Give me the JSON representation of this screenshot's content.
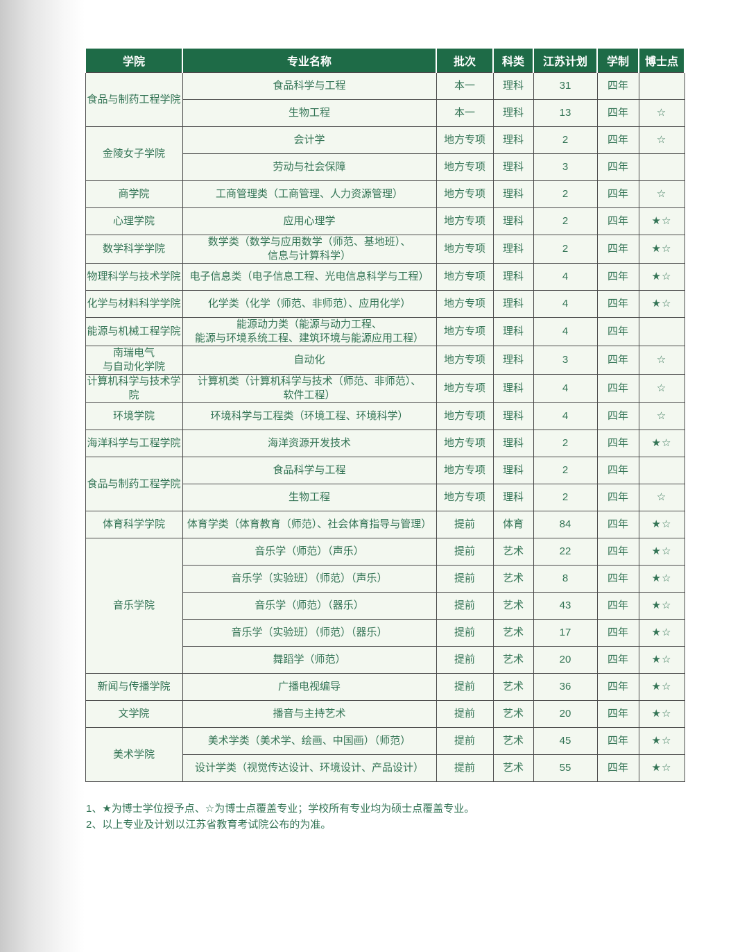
{
  "colors": {
    "header_bg": "#1e6b47",
    "header_text": "#ffffff",
    "cell_bg": "#f3f8f0",
    "cell_text": "#337455",
    "border": "#4a4a4a"
  },
  "table": {
    "headers": [
      "学院",
      "专业名称",
      "批次",
      "科类",
      "江苏计划",
      "学制",
      "博士点"
    ],
    "legend": {
      "filled_star": "★",
      "outline_star": "☆"
    },
    "rows": [
      {
        "college": "食品与制药工程学院",
        "college_rowspan": 2,
        "major": "食品科学与工程",
        "batch": "本一",
        "category": "理科",
        "plan": "31",
        "duration": "四年",
        "doctoral": ""
      },
      {
        "major": "生物工程",
        "batch": "本一",
        "category": "理科",
        "plan": "13",
        "duration": "四年",
        "doctoral": "☆"
      },
      {
        "college": "金陵女子学院",
        "college_rowspan": 2,
        "major": "会计学",
        "batch": "地方专项",
        "category": "理科",
        "plan": "2",
        "duration": "四年",
        "doctoral": "☆"
      },
      {
        "major": "劳动与社会保障",
        "batch": "地方专项",
        "category": "理科",
        "plan": "3",
        "duration": "四年",
        "doctoral": ""
      },
      {
        "college": "商学院",
        "major": "工商管理类（工商管理、人力资源管理）",
        "batch": "地方专项",
        "category": "理科",
        "plan": "2",
        "duration": "四年",
        "doctoral": "☆"
      },
      {
        "college": "心理学院",
        "major": "应用心理学",
        "batch": "地方专项",
        "category": "理科",
        "plan": "2",
        "duration": "四年",
        "doctoral": "★☆"
      },
      {
        "college": "数学科学学院",
        "major": "数学类（数学与应用数学（师范、基地班）、\n信息与计算科学）",
        "batch": "地方专项",
        "category": "理科",
        "plan": "2",
        "duration": "四年",
        "doctoral": "★☆"
      },
      {
        "college": "物理科学与技术学院",
        "major": "电子信息类（电子信息工程、光电信息科学与工程）",
        "batch": "地方专项",
        "category": "理科",
        "plan": "4",
        "duration": "四年",
        "doctoral": "★☆"
      },
      {
        "college": "化学与材料科学学院",
        "major": "化学类（化学（师范、非师范）、应用化学）",
        "batch": "地方专项",
        "category": "理科",
        "plan": "4",
        "duration": "四年",
        "doctoral": "★☆"
      },
      {
        "college": "能源与机械工程学院",
        "major": "能源动力类（能源与动力工程、\n能源与环境系统工程、建筑环境与能源应用工程）",
        "batch": "地方专项",
        "category": "理科",
        "plan": "4",
        "duration": "四年",
        "doctoral": ""
      },
      {
        "college": "南瑞电气\n与自动化学院",
        "major": "自动化",
        "batch": "地方专项",
        "category": "理科",
        "plan": "3",
        "duration": "四年",
        "doctoral": "☆"
      },
      {
        "college": "计算机科学与技术学院",
        "major": "计算机类（计算机科学与技术（师范、非师范）、\n软件工程）",
        "batch": "地方专项",
        "category": "理科",
        "plan": "4",
        "duration": "四年",
        "doctoral": "☆"
      },
      {
        "college": "环境学院",
        "major": "环境科学与工程类（环境工程、环境科学）",
        "batch": "地方专项",
        "category": "理科",
        "plan": "4",
        "duration": "四年",
        "doctoral": "☆"
      },
      {
        "college": "海洋科学与工程学院",
        "major": "海洋资源开发技术",
        "batch": "地方专项",
        "category": "理科",
        "plan": "2",
        "duration": "四年",
        "doctoral": "★☆"
      },
      {
        "college": "食品与制药工程学院",
        "college_rowspan": 2,
        "major": "食品科学与工程",
        "batch": "地方专项",
        "category": "理科",
        "plan": "2",
        "duration": "四年",
        "doctoral": ""
      },
      {
        "major": "生物工程",
        "batch": "地方专项",
        "category": "理科",
        "plan": "2",
        "duration": "四年",
        "doctoral": "☆"
      },
      {
        "college": "体育科学学院",
        "major": "体育学类（体育教育（师范）、社会体育指导与管理）",
        "batch": "提前",
        "category": "体育",
        "plan": "84",
        "duration": "四年",
        "doctoral": "★☆"
      },
      {
        "college": "音乐学院",
        "college_rowspan": 5,
        "major": "音乐学（师范）（声乐）",
        "batch": "提前",
        "category": "艺术",
        "plan": "22",
        "duration": "四年",
        "doctoral": "★☆"
      },
      {
        "major": "音乐学（实验班）（师范）（声乐）",
        "batch": "提前",
        "category": "艺术",
        "plan": "8",
        "duration": "四年",
        "doctoral": "★☆"
      },
      {
        "major": "音乐学（师范）（器乐）",
        "batch": "提前",
        "category": "艺术",
        "plan": "43",
        "duration": "四年",
        "doctoral": "★☆"
      },
      {
        "major": "音乐学（实验班）（师范）（器乐）",
        "batch": "提前",
        "category": "艺术",
        "plan": "17",
        "duration": "四年",
        "doctoral": "★☆"
      },
      {
        "major": "舞蹈学（师范）",
        "batch": "提前",
        "category": "艺术",
        "plan": "20",
        "duration": "四年",
        "doctoral": "★☆"
      },
      {
        "college": "新闻与传播学院",
        "major": "广播电视编导",
        "batch": "提前",
        "category": "艺术",
        "plan": "36",
        "duration": "四年",
        "doctoral": "★☆"
      },
      {
        "college": "文学院",
        "major": "播音与主持艺术",
        "batch": "提前",
        "category": "艺术",
        "plan": "20",
        "duration": "四年",
        "doctoral": "★☆"
      },
      {
        "college": "美术学院",
        "college_rowspan": 2,
        "major": "美术学类（美术学、绘画、中国画）（师范）",
        "batch": "提前",
        "category": "艺术",
        "plan": "45",
        "duration": "四年",
        "doctoral": "★☆"
      },
      {
        "major": "设计学类（视觉传达设计、环境设计、产品设计）",
        "batch": "提前",
        "category": "艺术",
        "plan": "55",
        "duration": "四年",
        "doctoral": "★☆"
      }
    ]
  },
  "footnotes": [
    "1、★为博士学位授予点、☆为博士点覆盖专业；学校所有专业均为硕士点覆盖专业。",
    "2、以上专业及计划以江苏省教育考试院公布的为准。"
  ]
}
